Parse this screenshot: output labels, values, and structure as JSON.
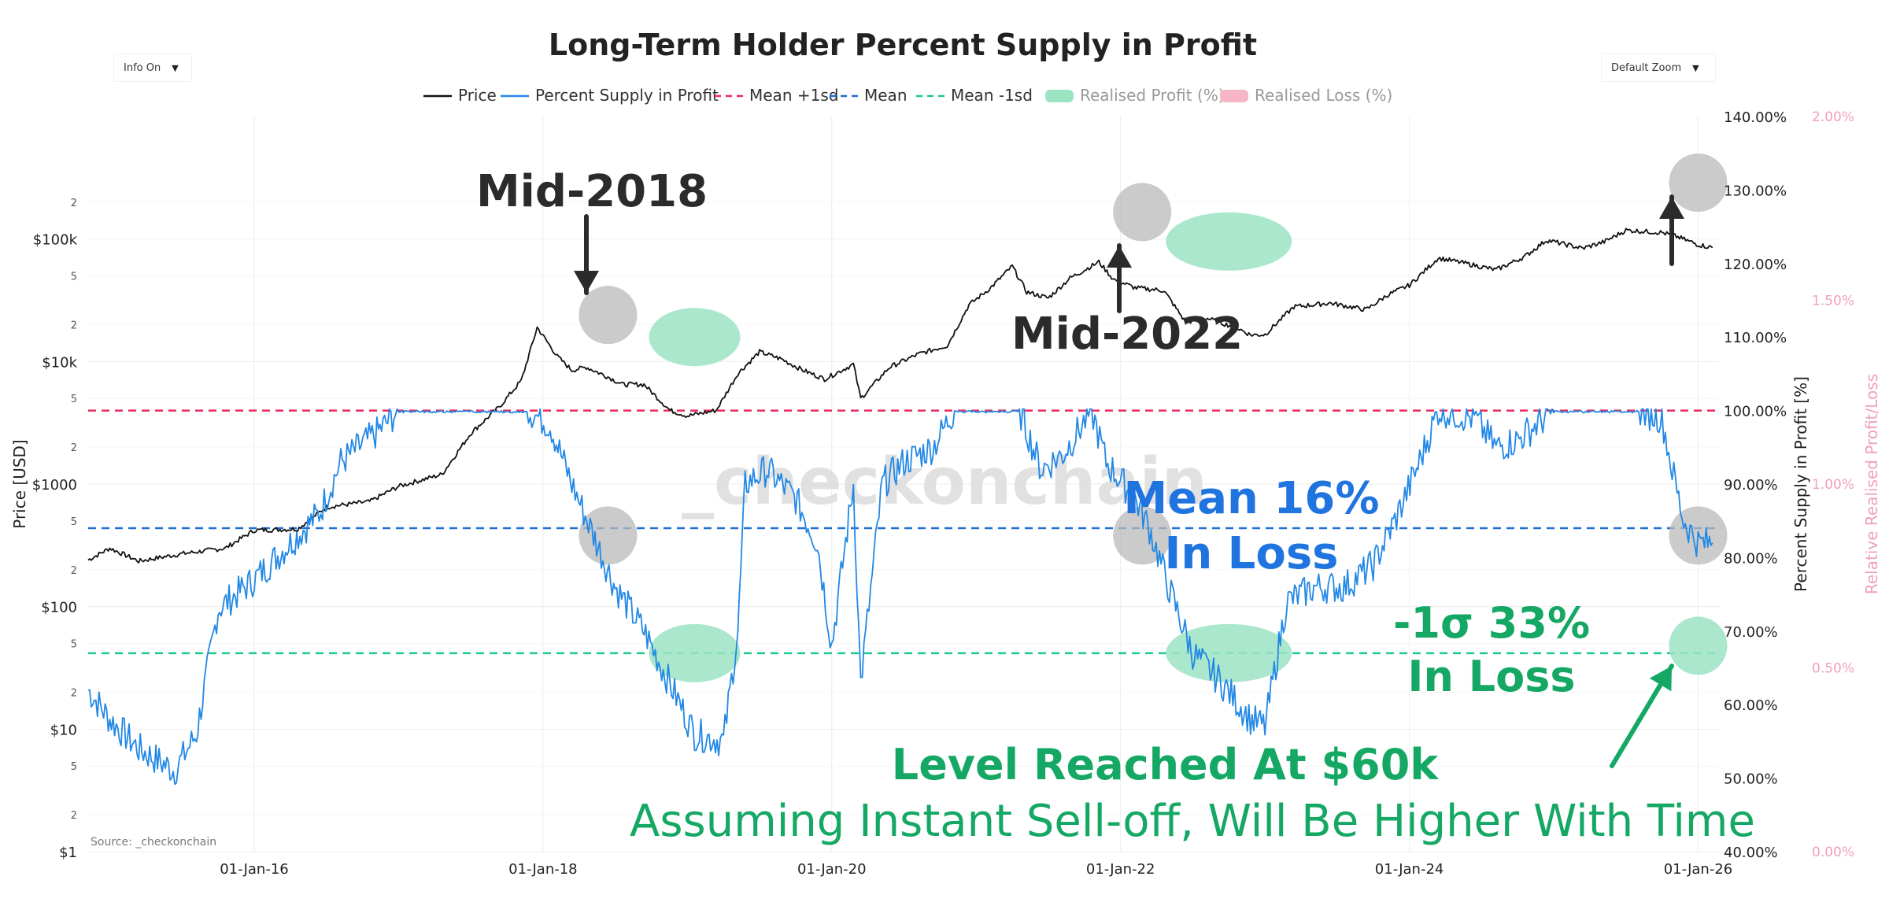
{
  "title": "Long-Term Holder Percent Supply in Profit",
  "controls": {
    "info": "Info On",
    "zoom": "Default Zoom"
  },
  "source": "Source: _checkonchain",
  "watermark": "_checkonchain",
  "colors": {
    "price": "#111111",
    "supply": "#2288e6",
    "mean_plus": "#ec2a5e",
    "mean": "#1f6fd4",
    "mean_minus": "#19c98f",
    "profit": "#9ce3c4",
    "loss": "#f7b5c8",
    "gray_circle": "#b9b9b9",
    "green_text": "#14a864",
    "blue_text": "#1f74e0",
    "pink_axis": "#f0a0b8"
  },
  "chart_data": {
    "type": "line",
    "title": "Long-Term Holder Percent Supply in Profit",
    "legend": [
      "Price",
      "Percent Supply in Profit",
      "Mean +1sd",
      "Mean",
      "Mean -1sd",
      "Realised Profit (%)",
      "Realised Loss (%)"
    ],
    "x_tick_labels": [
      "01-Jan-16",
      "01-Jan-18",
      "01-Jan-20",
      "01-Jan-22",
      "01-Jan-24",
      "01-Jan-26"
    ],
    "x_range": [
      2014.85,
      2026.15
    ],
    "left_axis": {
      "label": "Price [USD]",
      "scale": "log",
      "range": [
        1,
        1000000
      ],
      "major_ticks": [
        {
          "v": 1,
          "t": "$1"
        },
        {
          "v": 10,
          "t": "$10"
        },
        {
          "v": 100,
          "t": "$100"
        },
        {
          "v": 1000,
          "t": "$1000"
        },
        {
          "v": 10000,
          "t": "$10k"
        },
        {
          "v": 100000,
          "t": "$100k"
        }
      ],
      "minor_ticks": [
        {
          "v": 2,
          "t": "2"
        },
        {
          "v": 5,
          "t": "5"
        },
        {
          "v": 20,
          "t": "2"
        },
        {
          "v": 50,
          "t": "5"
        },
        {
          "v": 200,
          "t": "2"
        },
        {
          "v": 500,
          "t": "5"
        },
        {
          "v": 2000,
          "t": "2"
        },
        {
          "v": 5000,
          "t": "5"
        },
        {
          "v": 20000,
          "t": "2"
        },
        {
          "v": 50000,
          "t": "5"
        },
        {
          "v": 200000,
          "t": "2"
        }
      ]
    },
    "right_axis": {
      "label": "Percent Supply in Profit [%]",
      "range": [
        40,
        140
      ],
      "ticks": [
        "40.00%",
        "50.00%",
        "60.00%",
        "70.00%",
        "80.00%",
        "90.00%",
        "100.00%",
        "110.00%",
        "120.00%",
        "130.00%",
        "140.00%"
      ]
    },
    "right_axis2": {
      "label": "Relative Realised Profit/Loss",
      "range": [
        0,
        2
      ],
      "ticks": [
        "0.00%",
        "0.50%",
        "1.00%",
        "1.50%",
        "2.00%"
      ]
    },
    "reference_lines": {
      "mean_plus_1sd": 100,
      "mean": 84,
      "mean_minus_1sd": 67
    },
    "price_series": [
      [
        2014.85,
        240
      ],
      [
        2015.0,
        300
      ],
      [
        2015.2,
        235
      ],
      [
        2015.5,
        270
      ],
      [
        2015.8,
        300
      ],
      [
        2016.0,
        420
      ],
      [
        2016.3,
        430
      ],
      [
        2016.5,
        650
      ],
      [
        2016.8,
        720
      ],
      [
        2017.0,
        960
      ],
      [
        2017.3,
        1200
      ],
      [
        2017.5,
        2600
      ],
      [
        2017.7,
        4300
      ],
      [
        2017.85,
        7000
      ],
      [
        2017.96,
        19000
      ],
      [
        2018.1,
        11000
      ],
      [
        2018.2,
        8500
      ],
      [
        2018.3,
        9000
      ],
      [
        2018.45,
        7500
      ],
      [
        2018.55,
        6500
      ],
      [
        2018.7,
        6500
      ],
      [
        2018.88,
        4000
      ],
      [
        2019.0,
        3600
      ],
      [
        2019.2,
        4000
      ],
      [
        2019.35,
        8000
      ],
      [
        2019.5,
        12000
      ],
      [
        2019.65,
        10500
      ],
      [
        2019.8,
        8500
      ],
      [
        2019.95,
        7200
      ],
      [
        2020.15,
        9500
      ],
      [
        2020.2,
        5000
      ],
      [
        2020.4,
        9000
      ],
      [
        2020.6,
        11500
      ],
      [
        2020.8,
        13500
      ],
      [
        2020.95,
        29000
      ],
      [
        2021.1,
        40000
      ],
      [
        2021.25,
        60000
      ],
      [
        2021.35,
        37000
      ],
      [
        2021.5,
        33000
      ],
      [
        2021.65,
        48000
      ],
      [
        2021.85,
        65000
      ],
      [
        2021.95,
        47000
      ],
      [
        2022.1,
        40000
      ],
      [
        2022.3,
        38000
      ],
      [
        2022.45,
        21000
      ],
      [
        2022.6,
        22500
      ],
      [
        2022.8,
        19000
      ],
      [
        2022.9,
        16500
      ],
      [
        2023.0,
        16600
      ],
      [
        2023.2,
        28000
      ],
      [
        2023.45,
        30000
      ],
      [
        2023.7,
        26500
      ],
      [
        2023.85,
        35000
      ],
      [
        2024.0,
        42000
      ],
      [
        2024.2,
        70000
      ],
      [
        2024.4,
        63000
      ],
      [
        2024.6,
        56000
      ],
      [
        2024.8,
        72000
      ],
      [
        2024.95,
        98000
      ],
      [
        2025.2,
        84000
      ],
      [
        2025.35,
        95000
      ],
      [
        2025.5,
        118000
      ],
      [
        2025.75,
        113000
      ],
      [
        2025.85,
        105000
      ],
      [
        2026.0,
        90000
      ],
      [
        2026.1,
        85000
      ]
    ],
    "supply_series": [
      [
        2014.85,
        62
      ],
      [
        2015.0,
        58
      ],
      [
        2015.2,
        54
      ],
      [
        2015.45,
        51
      ],
      [
        2015.6,
        56
      ],
      [
        2015.75,
        73
      ],
      [
        2016.0,
        77
      ],
      [
        2016.25,
        82
      ],
      [
        2016.45,
        86
      ],
      [
        2016.6,
        93
      ],
      [
        2016.85,
        97
      ],
      [
        2017.0,
        100
      ],
      [
        2017.3,
        100
      ],
      [
        2017.9,
        100
      ],
      [
        2018.05,
        98
      ],
      [
        2018.2,
        90
      ],
      [
        2018.35,
        83
      ],
      [
        2018.5,
        76
      ],
      [
        2018.7,
        70
      ],
      [
        2018.9,
        62
      ],
      [
        2019.05,
        56
      ],
      [
        2019.25,
        55
      ],
      [
        2019.35,
        70
      ],
      [
        2019.4,
        90
      ],
      [
        2019.55,
        92
      ],
      [
        2019.75,
        88
      ],
      [
        2019.9,
        82
      ],
      [
        2020.0,
        68
      ],
      [
        2020.15,
        90
      ],
      [
        2020.2,
        63
      ],
      [
        2020.35,
        90
      ],
      [
        2020.5,
        93
      ],
      [
        2020.7,
        95
      ],
      [
        2020.85,
        100
      ],
      [
        2021.3,
        100
      ],
      [
        2021.45,
        92
      ],
      [
        2021.6,
        94
      ],
      [
        2021.8,
        100
      ],
      [
        2021.9,
        93
      ],
      [
        2022.1,
        88
      ],
      [
        2022.2,
        84
      ],
      [
        2022.35,
        75
      ],
      [
        2022.5,
        67
      ],
      [
        2022.7,
        63
      ],
      [
        2022.9,
        58
      ],
      [
        2023.0,
        57
      ],
      [
        2023.15,
        74
      ],
      [
        2023.35,
        76
      ],
      [
        2023.55,
        76
      ],
      [
        2023.75,
        79
      ],
      [
        2023.9,
        85
      ],
      [
        2024.05,
        92
      ],
      [
        2024.2,
        100
      ],
      [
        2024.45,
        99
      ],
      [
        2024.6,
        95
      ],
      [
        2024.75,
        96
      ],
      [
        2025.0,
        100
      ],
      [
        2025.6,
        100
      ],
      [
        2025.75,
        99
      ],
      [
        2025.82,
        92
      ],
      [
        2025.9,
        85
      ],
      [
        2026.0,
        82
      ],
      [
        2026.1,
        82
      ]
    ],
    "annotations": [
      {
        "text": "Mid-2018"
      },
      {
        "text": "Mid-2022"
      },
      {
        "text": "Mean 16%"
      },
      {
        "text": "In Loss"
      },
      {
        "text": "-1σ 33%"
      },
      {
        "text": "In Loss"
      },
      {
        "text": "Level Reached At $60k"
      },
      {
        "text": "Assuming Instant Sell-off, Will Be Higher With Time"
      }
    ],
    "highlight_periods": [
      {
        "name": "circle-2018-top",
        "x": 2018.45,
        "y_pct": 113,
        "kind": "gray"
      },
      {
        "name": "circle-2018-low",
        "x": 2018.45,
        "y_pct": 83,
        "kind": "gray"
      },
      {
        "name": "ellipse-2018-bottom-price",
        "x": 2019.05,
        "y_pct": 110,
        "kind": "green"
      },
      {
        "name": "ellipse-2018-bottom-supply",
        "x": 2019.05,
        "y_pct": 67,
        "kind": "green"
      },
      {
        "name": "circle-2022-top",
        "x": 2022.15,
        "y_pct": 127,
        "kind": "gray"
      },
      {
        "name": "circle-2022-low",
        "x": 2022.15,
        "y_pct": 83,
        "kind": "gray"
      },
      {
        "name": "ellipse-2022-bottom-price",
        "x": 2022.75,
        "y_pct": 123,
        "kind": "green"
      },
      {
        "name": "ellipse-2022-bottom-supply",
        "x": 2022.75,
        "y_pct": 67,
        "kind": "green"
      },
      {
        "name": "circle-2026-top",
        "x": 2026.0,
        "y_pct": 131,
        "kind": "gray"
      },
      {
        "name": "circle-2026-low",
        "x": 2026.0,
        "y_pct": 83,
        "kind": "gray"
      },
      {
        "name": "circle-2026-target",
        "x": 2026.0,
        "y_pct": 68,
        "kind": "green"
      }
    ]
  }
}
